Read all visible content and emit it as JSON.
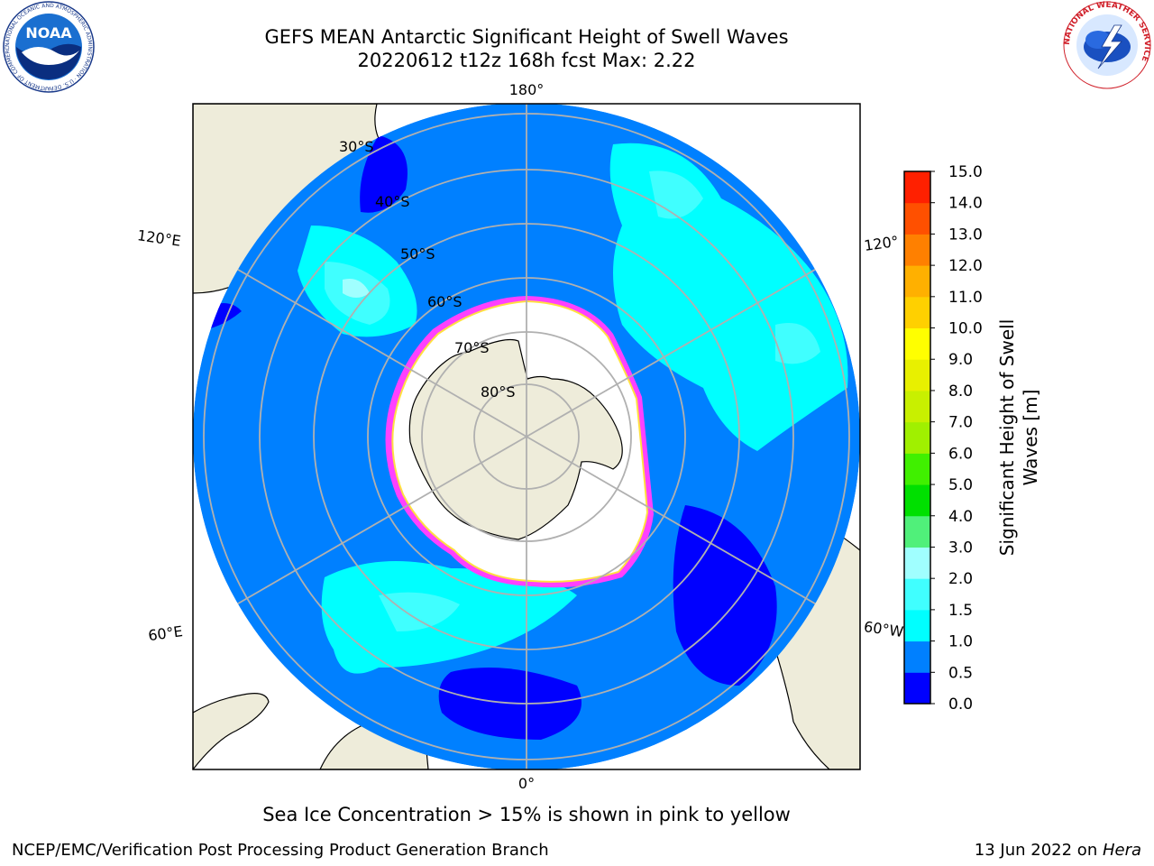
{
  "title": {
    "line1": "GEFS MEAN Antarctic Significant Height of Swell Waves",
    "line2": "20220612 t12z 168h fcst   Max: 2.22"
  },
  "logos": {
    "left": {
      "text": "NOAA",
      "ring_text": "NATIONAL OCEANIC AND ATMOSPHERIC ADMINISTRATION · U.S. DEPARTMENT OF COMMERCE"
    },
    "right": {
      "ring_text": "NATIONAL WEATHER SERVICE"
    }
  },
  "map": {
    "projection": "south-polar-stereographic",
    "lon_labels": {
      "top": "180°",
      "upper_left": "120°E",
      "upper_right": "120°",
      "lower_left": "60°E",
      "lower_right": "60°W",
      "bottom": "0°"
    },
    "lat_labels": [
      "30°S",
      "40°S",
      "50°S",
      "60°S",
      "70°S",
      "80°S"
    ],
    "colors": {
      "land": "#eeecda",
      "ocean_bg": "#0080ff",
      "sea_ice": "#ffffff",
      "grid": "#b0b0b0"
    }
  },
  "colorbar": {
    "label_line1": "Significant Height of Swell",
    "label_line2": "Waves [m]",
    "ticks": [
      "0.0",
      "0.5",
      "1.0",
      "1.5",
      "2.0",
      "3.0",
      "4.0",
      "5.0",
      "6.0",
      "7.0",
      "8.0",
      "9.0",
      "10.0",
      "11.0",
      "12.0",
      "13.0",
      "14.0",
      "15.0"
    ],
    "colors": [
      "#0000ff",
      "#0080ff",
      "#00ffff",
      "#40ffff",
      "#a0ffff",
      "#50f07a",
      "#00e000",
      "#40f000",
      "#a0f000",
      "#c8f000",
      "#e8f000",
      "#ffff00",
      "#ffd000",
      "#ffb000",
      "#ff8000",
      "#ff5000",
      "#ff2000",
      "#ff0000"
    ]
  },
  "note": "Sea Ice Concentration > 15% is shown in pink to yellow",
  "footer": {
    "left": "NCEP/EMC/Verification Post Processing Product Generation Branch",
    "right_prefix": "13 Jun 2022 on ",
    "right_host": "Hera"
  }
}
